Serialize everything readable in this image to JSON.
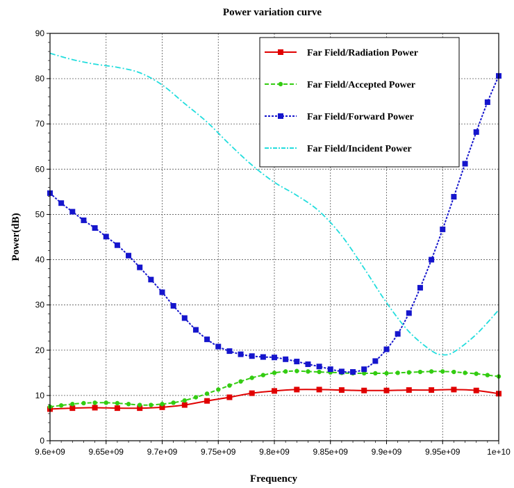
{
  "chart_data": {
    "type": "line",
    "title": "Power variation curve",
    "xlabel": "Frequency",
    "ylabel": "Power(dB)",
    "xlim": [
      9600000000,
      10000000000
    ],
    "ylim": [
      0,
      90
    ],
    "x_ticks": [
      9600000000,
      9650000000,
      9700000000,
      9750000000,
      9800000000,
      9850000000,
      9900000000,
      9950000000,
      10000000000
    ],
    "x_tick_labels": [
      "9.6e+09",
      "9.65e+09",
      "9.7e+09",
      "9.75e+09",
      "9.8e+09",
      "9.85e+09",
      "9.9e+09",
      "9.95e+09",
      "1e+10"
    ],
    "y_ticks": [
      0,
      10,
      20,
      30,
      40,
      50,
      60,
      70,
      80,
      90
    ],
    "y_tick_labels": [
      "0",
      "10",
      "20",
      "30",
      "40",
      "50",
      "60",
      "70",
      "80",
      "90"
    ],
    "grid": true,
    "legend_position": "top-right",
    "series": [
      {
        "name": "Far Field/Radiation Power",
        "color": "#e00000",
        "marker": "square",
        "dash": "solid",
        "x": [
          9600000000,
          9620000000,
          9640000000,
          9660000000,
          9680000000,
          9700000000,
          9720000000,
          9740000000,
          9760000000,
          9780000000,
          9800000000,
          9820000000,
          9840000000,
          9860000000,
          9880000000,
          9900000000,
          9920000000,
          9940000000,
          9960000000,
          9980000000,
          10000000000
        ],
        "y": [
          7.0,
          7.2,
          7.3,
          7.2,
          7.2,
          7.4,
          7.9,
          8.8,
          9.6,
          10.5,
          11.0,
          11.3,
          11.3,
          11.2,
          11.1,
          11.1,
          11.2,
          11.2,
          11.3,
          11.1,
          10.4
        ]
      },
      {
        "name": "Far Field/Accepted Power",
        "color": "#33cc11",
        "marker": "diamond",
        "dash": "dashed",
        "x": [
          9600000000,
          9610000000,
          9620000000,
          9630000000,
          9640000000,
          9650000000,
          9660000000,
          9670000000,
          9680000000,
          9690000000,
          9700000000,
          9710000000,
          9720000000,
          9730000000,
          9740000000,
          9750000000,
          9760000000,
          9770000000,
          9780000000,
          9790000000,
          9800000000,
          9810000000,
          9820000000,
          9830000000,
          9840000000,
          9850000000,
          9860000000,
          9870000000,
          9880000000,
          9890000000,
          9900000000,
          9910000000,
          9920000000,
          9930000000,
          9940000000,
          9950000000,
          9960000000,
          9970000000,
          9980000000,
          9990000000,
          10000000000
        ],
        "y": [
          7.5,
          7.8,
          8.1,
          8.3,
          8.4,
          8.4,
          8.3,
          8.1,
          7.9,
          7.9,
          8.1,
          8.4,
          8.9,
          9.6,
          10.4,
          11.3,
          12.2,
          13.1,
          13.9,
          14.5,
          15.0,
          15.3,
          15.4,
          15.3,
          15.2,
          15.1,
          15.0,
          14.9,
          14.9,
          14.9,
          14.9,
          15.0,
          15.1,
          15.2,
          15.3,
          15.3,
          15.2,
          15.0,
          14.8,
          14.5,
          14.2
        ]
      },
      {
        "name": "Far Field/Forward Power",
        "color": "#1515cc",
        "marker": "square",
        "dash": "dotted",
        "x": [
          9600000000,
          9610000000,
          9620000000,
          9630000000,
          9640000000,
          9650000000,
          9660000000,
          9670000000,
          9680000000,
          9690000000,
          9700000000,
          9710000000,
          9720000000,
          9730000000,
          9740000000,
          9750000000,
          9760000000,
          9770000000,
          9780000000,
          9790000000,
          9800000000,
          9810000000,
          9820000000,
          9830000000,
          9840000000,
          9850000000,
          9860000000,
          9870000000,
          9880000000,
          9890000000,
          9900000000,
          9910000000,
          9920000000,
          9930000000,
          9940000000,
          9950000000,
          9960000000,
          9970000000,
          9980000000,
          9990000000,
          10000000000
        ],
        "y": [
          54.7,
          52.5,
          50.6,
          48.7,
          47.0,
          45.1,
          43.2,
          40.9,
          38.3,
          35.6,
          32.8,
          29.8,
          27.1,
          24.5,
          22.4,
          20.8,
          19.8,
          19.1,
          18.7,
          18.5,
          18.4,
          18.0,
          17.5,
          16.9,
          16.4,
          15.8,
          15.3,
          15.2,
          15.8,
          17.6,
          20.2,
          23.6,
          28.2,
          33.8,
          40.0,
          46.7,
          53.9,
          61.2,
          68.2,
          74.8,
          80.6
        ]
      },
      {
        "name": "Far Field/Incident Power",
        "color": "#22dddd",
        "marker": "none",
        "dash": "dashdot",
        "x": [
          9600000000,
          9620000000,
          9640000000,
          9660000000,
          9680000000,
          9700000000,
          9720000000,
          9740000000,
          9760000000,
          9780000000,
          9800000000,
          9820000000,
          9840000000,
          9860000000,
          9880000000,
          9900000000,
          9920000000,
          9940000000,
          9950000000,
          9960000000,
          9980000000,
          10000000000
        ],
        "y": [
          85.6,
          84.2,
          83.2,
          82.5,
          81.3,
          78.6,
          74.5,
          70.4,
          65.5,
          60.9,
          57.1,
          54.2,
          50.7,
          45.3,
          38.1,
          30.5,
          24.1,
          19.9,
          19.0,
          19.6,
          23.5,
          28.9
        ]
      }
    ]
  }
}
